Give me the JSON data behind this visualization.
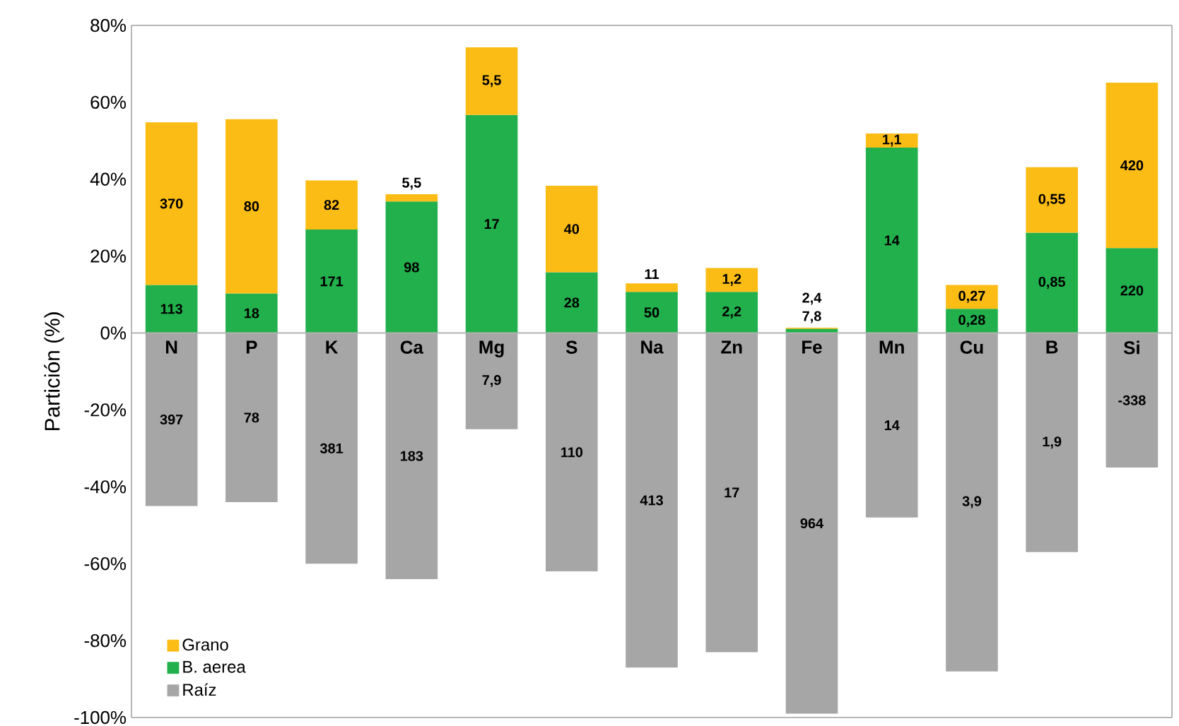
{
  "chart_data": {
    "type": "bar",
    "stacked": true,
    "ylabel": "Partición (%)",
    "categories": [
      "N",
      "P",
      "K",
      "Ca",
      "Mg",
      "S",
      "Na",
      "Zn",
      "Fe",
      "Mn",
      "Cu",
      "B",
      "Si"
    ],
    "series": [
      {
        "name": "Raíz",
        "color": "#a6a6a6",
        "values": [
          -45,
          -44,
          -60,
          -64,
          -25,
          -62,
          -87,
          -83,
          -99,
          -48,
          -88,
          -57,
          -35
        ]
      },
      {
        "name": "B. aerea",
        "color": "#21b04b",
        "values": [
          12.5,
          10.3,
          26.9,
          34.2,
          56.7,
          15.8,
          10.7,
          10.7,
          1.1,
          48.2,
          6.3,
          26.1,
          22.1
        ]
      },
      {
        "name": "Grano",
        "color": "#fbbc15",
        "values": [
          42.3,
          45.3,
          12.8,
          1.9,
          17.6,
          22.5,
          2.2,
          6.2,
          0.3,
          3.7,
          6.2,
          17,
          43
        ]
      }
    ],
    "annotations": [
      "397",
      "78",
      "381",
      "183",
      "7,9",
      "110",
      "413",
      "17",
      "964",
      "14",
      "3,9",
      "1,9",
      "-338",
      "113",
      "18",
      "171",
      "98",
      "17",
      "28",
      "50",
      "2,2",
      "7,8",
      "14",
      "0,28",
      "0,85",
      "220",
      "370",
      "80",
      "82",
      "5,5",
      "5,5",
      "40",
      "11",
      "1,2",
      "2,4",
      "1,1",
      "0,27",
      "0,55",
      "420"
    ],
    "ylim": [
      -100,
      80
    ],
    "yticks": [
      {
        "value": -100,
        "label": "-100%"
      },
      {
        "value": -80,
        "label": "-80%"
      },
      {
        "value": -60,
        "label": "-60%"
      },
      {
        "value": -40,
        "label": "-40%"
      },
      {
        "value": -20,
        "label": "-20%"
      },
      {
        "value": 0,
        "label": "0%"
      },
      {
        "value": 20,
        "label": "20%"
      },
      {
        "value": 40,
        "label": "40%"
      },
      {
        "value": 60,
        "label": "60%"
      },
      {
        "value": 80,
        "label": "80%"
      }
    ],
    "grid": false,
    "legend": "bottom left"
  }
}
